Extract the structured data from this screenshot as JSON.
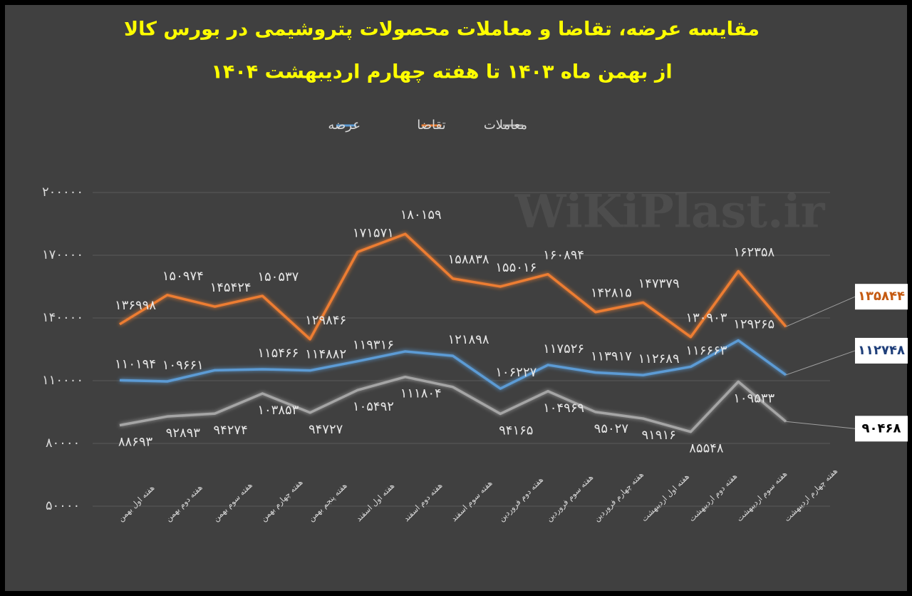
{
  "chart_data": {
    "type": "line",
    "title": "مقایسه عرضه، تقاضا و معاملات محصولات پتروشیمی در بورس کالا",
    "subtitle": "از بهمن ماه ۱۴۰۳ تا هفته چهارم اردیبهشت ۱۴۰۴",
    "watermark": "WiKiPlast.ir",
    "categories": [
      "هفته اول بهمن",
      "هفته دوم بهمن",
      "هفته سوم بهمن",
      "هفته چهارم بهمن",
      "هفته پنجم بهمن",
      "هفته اول اسفند",
      "هفته دوم اسفند",
      "هفته سوم اسفند",
      "هفته دوم فروردین",
      "هفته سوم فروردین",
      "هفته چهارم فروردین",
      "هفته اول اردیبهشت",
      "هفته دوم اردیبهشت",
      "هفته سوم اردیبهشت",
      "هفته چهارم اردیبهشت"
    ],
    "series": [
      {
        "name": "عرضه",
        "color": "#5b9bd5",
        "values": [
          110194,
          109661,
          115000,
          115466,
          114882,
          119316,
          124000,
          121898,
          106227,
          117526,
          113917,
          112689,
          116663,
          129265,
          112748
        ],
        "value_labels": [
          "۱۱۰۱۹۴",
          "۱۰۹۶۶۱",
          null,
          "۱۱۵۴۶۶",
          "۱۱۴۸۸۲",
          "۱۱۹۳۱۶",
          null,
          "۱۲۱۸۹۸",
          "۱۰۶۲۲۷",
          "۱۱۷۵۲۶",
          "۱۱۳۹۱۷",
          "۱۱۲۶۸۹",
          "۱۱۶۶۶۳",
          "۱۲۹۲۶۵",
          "۱۱۲۷۴۸"
        ]
      },
      {
        "name": "تقاضا",
        "color": "#ed7d31",
        "values": [
          136998,
          150974,
          145424,
          150537,
          129846,
          171571,
          180159,
          158838,
          155016,
          160894,
          142815,
          147379,
          130903,
          162358,
          135844
        ],
        "value_labels": [
          "۱۳۶۹۹۸",
          "۱۵۰۹۷۴",
          "۱۴۵۴۲۴",
          "۱۵۰۵۳۷",
          "۱۲۹۸۴۶",
          "۱۷۱۵۷۱",
          "۱۸۰۱۵۹",
          "۱۵۸۸۳۸",
          "۱۵۵۰۱۶",
          "۱۶۰۸۹۴",
          "۱۴۲۸۱۵",
          "۱۴۷۳۷۹",
          "۱۳۰۹۰۳",
          "۱۶۲۳۵۸",
          "۱۳۵۸۴۴"
        ]
      },
      {
        "name": "معاملات",
        "color": "#a5a5a5",
        "values": [
          88693,
          92893,
          94274,
          103853,
          94727,
          105492,
          111804,
          107000,
          94165,
          104969,
          95027,
          91916,
          85548,
          109533,
          90468
        ],
        "value_labels": [
          "۸۸۶۹۳",
          "۹۲۸۹۳",
          "۹۴۲۷۴",
          "۱۰۳۸۵۳",
          "۹۴۷۲۷",
          "۱۰۵۴۹۲",
          "۱۱۱۸۰۴",
          null,
          "۹۴۱۶۵",
          "۱۰۴۹۶۹",
          "۹۵۰۲۷",
          "۹۱۹۱۶",
          "۸۵۵۴۸",
          "۱۰۹۵۳۳",
          "۹۰۴۶۸"
        ]
      }
    ],
    "ylim": [
      50000,
      200000
    ],
    "yticks": [
      {
        "value": 50000,
        "label": "۵۰۰۰۰"
      },
      {
        "value": 80000,
        "label": "۸۰۰۰۰"
      },
      {
        "value": 110000,
        "label": "۱۱۰۰۰۰"
      },
      {
        "value": 140000,
        "label": "۱۴۰۰۰۰"
      },
      {
        "value": 170000,
        "label": "۱۷۰۰۰۰"
      },
      {
        "value": 200000,
        "label": "۲۰۰۰۰۰"
      }
    ],
    "grid": true
  }
}
